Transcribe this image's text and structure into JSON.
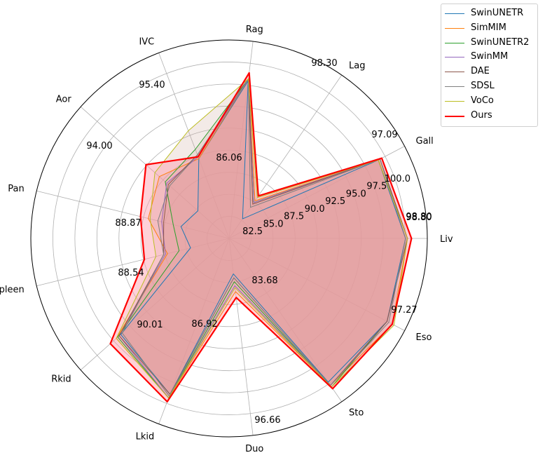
{
  "chart_data": {
    "type": "radar",
    "categories": [
      "Liv",
      "Gall",
      "Lag",
      "Rag",
      "IVC",
      "Aor",
      "Pan",
      "Spleen",
      "Rkid",
      "Lkid",
      "Duo",
      "Sto",
      "Eso"
    ],
    "radial_ticks": [
      "82.5",
      "85.0",
      "87.5",
      "90.0",
      "92.5",
      "95.0",
      "97.5",
      "100.0"
    ],
    "annotations": [
      "98.80",
      "98.80",
      "97.27",
      "83.68",
      "96.66",
      "86.92",
      "90.01",
      "88.54",
      "88.87",
      "94.00",
      "95.40",
      "86.06",
      "98.30",
      "97.09"
    ],
    "series": [
      {
        "name": "SwinUNETR",
        "color": "#1f77b4",
        "values": [
          0.89,
          0.85,
          0.12,
          0.8,
          0.43,
          0.21,
          0.25,
          0.2,
          0.73,
          0.84,
          0.18,
          0.88,
          0.9
        ]
      },
      {
        "name": "SimMIM",
        "color": "#ff7f0e",
        "values": [
          0.9,
          0.85,
          0.23,
          0.81,
          0.43,
          0.47,
          0.42,
          0.32,
          0.76,
          0.86,
          0.27,
          0.9,
          0.93
        ]
      },
      {
        "name": "SwinUNETR2",
        "color": "#2ca02c",
        "values": [
          0.9,
          0.86,
          0.22,
          0.81,
          0.48,
          0.43,
          0.29,
          0.26,
          0.75,
          0.86,
          0.22,
          0.91,
          0.9
        ]
      },
      {
        "name": "SwinMM",
        "color": "#9467bd",
        "values": [
          0.9,
          0.86,
          0.22,
          0.81,
          0.44,
          0.42,
          0.35,
          0.33,
          0.74,
          0.86,
          0.24,
          0.9,
          0.9
        ]
      },
      {
        "name": "DAE",
        "color": "#8c564b",
        "values": [
          0.9,
          0.86,
          0.21,
          0.81,
          0.45,
          0.41,
          0.34,
          0.34,
          0.74,
          0.84,
          0.2,
          0.9,
          0.9
        ]
      },
      {
        "name": "SDSL",
        "color": "#7f7f7f",
        "values": [
          0.89,
          0.86,
          0.19,
          0.81,
          0.45,
          0.4,
          0.37,
          0.34,
          0.72,
          0.85,
          0.2,
          0.9,
          0.91
        ]
      },
      {
        "name": "VoCo",
        "color": "#bcbd22",
        "values": [
          0.9,
          0.85,
          0.25,
          0.81,
          0.58,
          0.5,
          0.41,
          0.38,
          0.76,
          0.86,
          0.25,
          0.91,
          0.94
        ]
      },
      {
        "name": "Ours",
        "color": "#ff0000",
        "bold": true,
        "values": [
          0.92,
          0.87,
          0.26,
          0.84,
          0.44,
          0.56,
          0.46,
          0.44,
          0.8,
          0.88,
          0.3,
          0.92,
          0.93
        ]
      }
    ],
    "fill_color": "#c8a090",
    "grid": true,
    "legend_position": "top-right-outside"
  }
}
